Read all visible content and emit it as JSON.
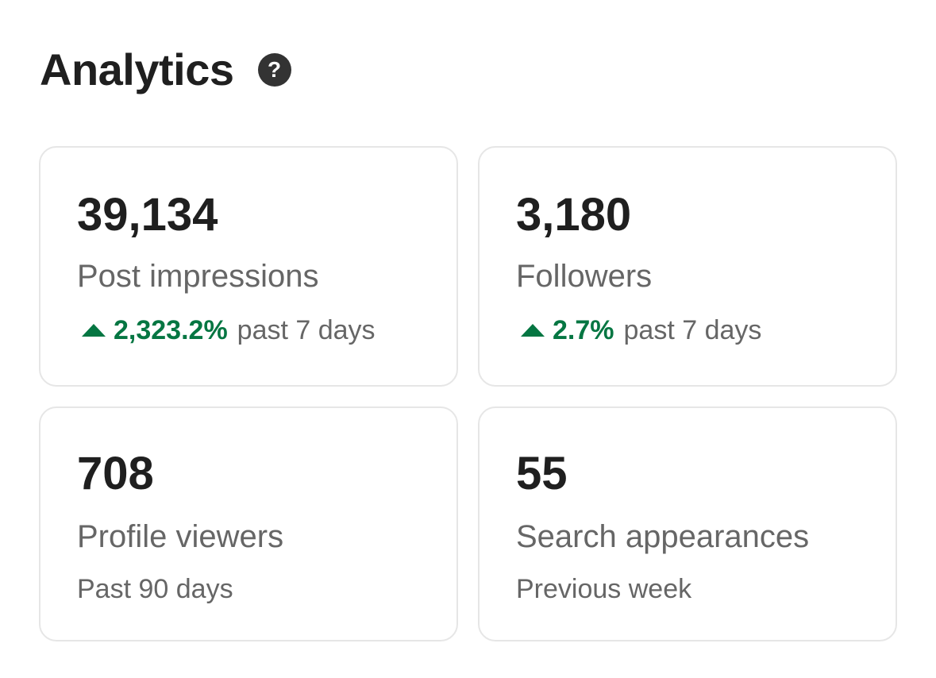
{
  "header": {
    "title": "Analytics",
    "help_icon": "question-circle-icon"
  },
  "colors": {
    "positive": "#057642",
    "muted_text": "#666666",
    "primary_text": "#1f1f1f",
    "card_border": "#e6e6e6"
  },
  "cards": [
    {
      "value": "39,134",
      "label": "Post impressions",
      "trend_icon": "triangle-up-icon",
      "trend_percent": "2,323.2%",
      "trend_period": "past 7 days"
    },
    {
      "value": "3,180",
      "label": "Followers",
      "trend_icon": "triangle-up-icon",
      "trend_percent": "2.7%",
      "trend_period": "past 7 days"
    },
    {
      "value": "708",
      "label": "Profile viewers",
      "subtitle": "Past 90 days"
    },
    {
      "value": "55",
      "label": "Search appearances",
      "subtitle": "Previous week"
    }
  ]
}
